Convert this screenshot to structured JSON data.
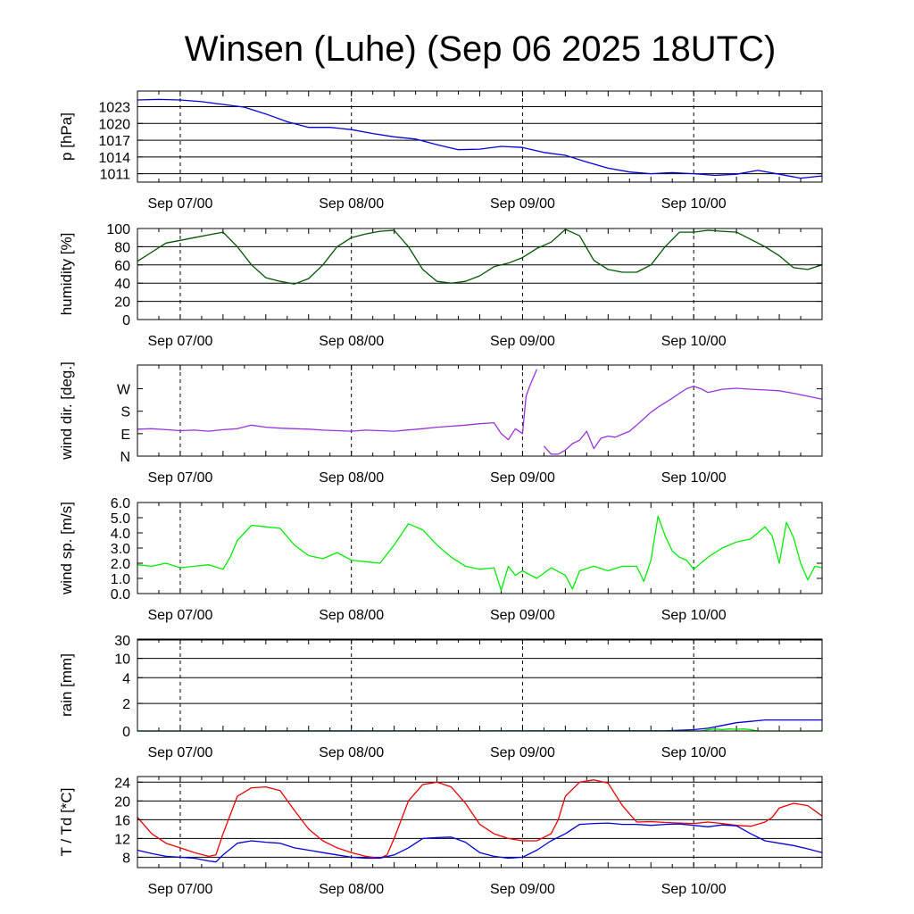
{
  "title": "Winsen (Luhe) (Sep 06 2025 18UTC)",
  "chart_data": [
    {
      "type": "line",
      "ylabel": "p [hPa]",
      "yticks": [
        "1011",
        "1014",
        "1017",
        "1020",
        "1023"
      ],
      "ylim": [
        1009.5,
        1025.8
      ],
      "xlim": [
        0,
        96
      ],
      "xticks": [
        {
          "label": "Sep 07/00",
          "x": 6
        },
        {
          "label": "Sep 08/00",
          "x": 30
        },
        {
          "label": "Sep 09/00",
          "x": 54
        },
        {
          "label": "Sep 10/00",
          "x": 78
        }
      ],
      "grid": true,
      "series": [
        {
          "color": "#0000dd",
          "x": [
            0,
            3,
            6,
            9,
            12,
            15,
            18,
            21,
            24,
            27,
            30,
            33,
            36,
            39,
            42,
            45,
            48,
            51,
            54,
            57,
            60,
            63,
            66,
            69,
            72,
            75,
            78,
            81,
            84,
            87,
            90,
            93,
            96
          ],
          "values": [
            1024.2,
            1024.3,
            1024.2,
            1023.9,
            1023.4,
            1022.9,
            1021.7,
            1020.3,
            1019.3,
            1019.3,
            1018.9,
            1018.2,
            1017.6,
            1017.2,
            1016.2,
            1015.3,
            1015.4,
            1015.9,
            1015.7,
            1014.8,
            1014.3,
            1013.1,
            1012.0,
            1011.3,
            1011.0,
            1011.2,
            1011.0,
            1010.7,
            1010.9,
            1011.6,
            1010.9,
            1010.2,
            1010.6
          ]
        }
      ]
    },
    {
      "type": "line",
      "ylabel": "humidity [%]",
      "yticks": [
        "0",
        "20",
        "40",
        "60",
        "80",
        "100"
      ],
      "ylim": [
        0,
        100
      ],
      "xlim": [
        0,
        96
      ],
      "xticks": [
        {
          "label": "Sep 07/00",
          "x": 6
        },
        {
          "label": "Sep 08/00",
          "x": 30
        },
        {
          "label": "Sep 09/00",
          "x": 54
        },
        {
          "label": "Sep 10/00",
          "x": 78
        }
      ],
      "grid": true,
      "series": [
        {
          "color": "#005500",
          "x": [
            0,
            2,
            4,
            6,
            8,
            10,
            12,
            14,
            16,
            18,
            20,
            22,
            24,
            26,
            28,
            30,
            32,
            34,
            36,
            38,
            40,
            42,
            44,
            46,
            48,
            50,
            52,
            54,
            56,
            58,
            60,
            62,
            64,
            66,
            68,
            70,
            72,
            74,
            76,
            78,
            80,
            82,
            84,
            86,
            88,
            90,
            92,
            94,
            96
          ],
          "values": [
            64,
            74,
            84,
            87,
            90,
            93,
            96,
            80,
            60,
            46,
            42,
            39,
            45,
            60,
            80,
            90,
            94,
            97,
            98,
            80,
            55,
            42,
            40,
            42,
            48,
            58,
            62,
            68,
            78,
            85,
            99,
            92,
            65,
            55,
            52,
            52,
            60,
            80,
            96,
            96,
            98,
            97,
            96,
            88,
            80,
            70,
            57,
            55,
            60
          ]
        }
      ]
    },
    {
      "type": "line",
      "ylabel": "wind dir. [deg.]",
      "yticks": [
        "N",
        "E",
        "S",
        "W"
      ],
      "ytick_values": [
        0,
        90,
        180,
        270
      ],
      "ylim": [
        0,
        365
      ],
      "xlim": [
        0,
        96
      ],
      "xticks": [
        {
          "label": "Sep 07/00",
          "x": 6
        },
        {
          "label": "Sep 08/00",
          "x": 30
        },
        {
          "label": "Sep 09/00",
          "x": 54
        },
        {
          "label": "Sep 10/00",
          "x": 78
        }
      ],
      "grid": false,
      "series": [
        {
          "color": "#9933dd",
          "segments": [
            {
              "x": [
                0,
                2,
                4,
                6,
                8,
                10,
                12,
                14,
                16,
                18,
                20,
                22,
                24,
                26,
                28,
                30,
                32,
                34,
                36,
                38,
                40,
                42,
                44,
                46,
                48,
                50,
                51,
                52,
                53,
                54,
                54.5,
                55,
                56
              ],
              "values": [
                108,
                110,
                106,
                102,
                104,
                100,
                106,
                110,
                124,
                116,
                112,
                110,
                108,
                104,
                102,
                100,
                104,
                102,
                100,
                105,
                110,
                116,
                120,
                124,
                130,
                134,
                90,
                66,
                110,
                90,
                240,
                280,
                348
              ]
            },
            {
              "x": [
                57,
                58,
                59,
                60,
                61,
                62,
                63,
                64,
                65,
                66,
                67,
                68,
                69,
                70,
                71,
                72,
                73,
                74,
                75,
                76,
                77,
                78,
                79,
                80,
                82,
                84,
                86,
                88,
                90,
                92,
                94,
                96
              ],
              "values": [
                40,
                8,
                8,
                24,
                50,
                64,
                100,
                30,
                72,
                80,
                76,
                88,
                100,
                124,
                150,
                176,
                196,
                214,
                232,
                252,
                270,
                280,
                270,
                255,
                268,
                272,
                268,
                265,
                262,
                252,
                240,
                228
              ]
            }
          ]
        }
      ]
    },
    {
      "type": "line",
      "ylabel": "wind sp. [m/s]",
      "yticks": [
        "0.0",
        "1.0",
        "2.0",
        "3.0",
        "4.0",
        "5.0",
        "6.0"
      ],
      "ylim": [
        0,
        6
      ],
      "xlim": [
        0,
        96
      ],
      "xticks": [
        {
          "label": "Sep 07/00",
          "x": 6
        },
        {
          "label": "Sep 08/00",
          "x": 30
        },
        {
          "label": "Sep 09/00",
          "x": 54
        },
        {
          "label": "Sep 10/00",
          "x": 78
        }
      ],
      "grid": false,
      "series": [
        {
          "color": "#00ee00",
          "x": [
            0,
            2,
            4,
            6,
            8,
            10,
            12,
            13,
            14,
            16,
            18,
            20,
            22,
            24,
            26,
            28,
            30,
            32,
            34,
            36,
            38,
            40,
            42,
            44,
            46,
            48,
            50,
            51,
            52,
            53,
            54,
            56,
            58,
            60,
            61,
            62,
            64,
            66,
            68,
            70,
            71,
            72,
            73,
            74,
            75,
            76,
            77,
            78,
            79,
            80,
            82,
            84,
            86,
            88,
            89,
            90,
            91,
            92,
            93,
            94,
            95,
            96
          ],
          "values": [
            1.9,
            1.8,
            2.0,
            1.7,
            1.8,
            1.9,
            1.6,
            2.4,
            3.5,
            4.5,
            4.4,
            4.3,
            3.2,
            2.5,
            2.3,
            2.7,
            2.2,
            2.1,
            2.0,
            3.2,
            4.6,
            4.2,
            3.2,
            2.4,
            1.8,
            1.6,
            1.7,
            0.2,
            1.8,
            1.2,
            1.5,
            1.0,
            1.7,
            1.2,
            0.3,
            1.5,
            1.8,
            1.5,
            1.8,
            1.8,
            0.8,
            2.2,
            5.1,
            3.8,
            2.8,
            2.4,
            2.2,
            1.6,
            2.0,
            2.4,
            3.0,
            3.4,
            3.6,
            4.4,
            3.8,
            2.0,
            4.7,
            3.7,
            2.0,
            0.9,
            1.8,
            1.7
          ]
        }
      ]
    },
    {
      "type": "line",
      "ylabel": "rain [mm]",
      "yticks": [
        "0",
        "2",
        "4",
        "10",
        "30"
      ],
      "ytick_values": [
        0,
        2,
        4,
        10,
        30
      ],
      "ytick_positions": [
        0,
        0.3,
        0.58,
        0.79,
        0.99
      ],
      "xlim": [
        0,
        96
      ],
      "xticks": [
        {
          "label": "Sep 07/00",
          "x": 6
        },
        {
          "label": "Sep 08/00",
          "x": 30
        },
        {
          "label": "Sep 09/00",
          "x": 54
        },
        {
          "label": "Sep 10/00",
          "x": 78
        }
      ],
      "grid": true,
      "series": [
        {
          "color": "#0000dd",
          "x": [
            0,
            74,
            76,
            78,
            80,
            82,
            84,
            86,
            88,
            92,
            96
          ],
          "values": [
            0,
            0.01,
            0.05,
            0.1,
            0.2,
            0.4,
            0.6,
            0.7,
            0.8,
            0.8,
            0.8
          ]
        },
        {
          "color": "#00dd00",
          "x": [
            0,
            79,
            80,
            81,
            82,
            83,
            84,
            85,
            86,
            87,
            96
          ],
          "values": [
            0,
            0,
            0.1,
            0.15,
            0.1,
            0.15,
            0.12,
            0.15,
            0.1,
            0,
            0
          ]
        }
      ]
    },
    {
      "type": "line",
      "ylabel": "T / Td [*C]",
      "yticks": [
        "8",
        "12",
        "16",
        "20",
        "24"
      ],
      "ylim": [
        5.8,
        25.2
      ],
      "xlim": [
        0,
        96
      ],
      "xticks": [
        {
          "label": "Sep 07/00",
          "x": 6
        },
        {
          "label": "Sep 08/00",
          "x": 30
        },
        {
          "label": "Sep 09/00",
          "x": 54
        },
        {
          "label": "Sep 10/00",
          "x": 78
        }
      ],
      "grid": true,
      "series": [
        {
          "color": "#ee0000",
          "x": [
            0,
            2,
            4,
            6,
            8,
            10,
            11,
            12,
            14,
            16,
            18,
            20,
            22,
            24,
            26,
            28,
            30,
            32,
            34,
            35,
            36,
            38,
            40,
            42,
            44,
            46,
            48,
            50,
            52,
            54,
            56,
            58,
            59,
            60,
            62,
            64,
            66,
            68,
            70,
            72,
            74,
            76,
            78,
            80,
            82,
            84,
            86,
            88,
            89,
            90,
            92,
            94,
            96
          ],
          "values": [
            16.5,
            13,
            11,
            10,
            9,
            8.2,
            8.5,
            13,
            21,
            22.8,
            23,
            22.2,
            18,
            14,
            11.5,
            10,
            9,
            8.2,
            7.8,
            8.5,
            12,
            20,
            23.5,
            24,
            23,
            19.5,
            15,
            13,
            12,
            11.5,
            11.5,
            13,
            16,
            21,
            24,
            24.5,
            23.8,
            19,
            15.5,
            15.6,
            15.4,
            15.3,
            15.2,
            15.5,
            15.2,
            14.8,
            14.6,
            15.5,
            16.5,
            18.5,
            19.5,
            19,
            16.8
          ]
        },
        {
          "color": "#0000dd",
          "x": [
            0,
            2,
            4,
            6,
            8,
            10,
            11,
            12,
            14,
            16,
            18,
            20,
            22,
            24,
            26,
            28,
            30,
            32,
            34,
            36,
            38,
            40,
            42,
            44,
            46,
            48,
            50,
            52,
            54,
            56,
            58,
            60,
            62,
            64,
            66,
            68,
            70,
            72,
            74,
            76,
            78,
            80,
            82,
            84,
            86,
            88,
            90,
            92,
            94,
            96
          ],
          "values": [
            9.5,
            8.8,
            8.2,
            8,
            7.8,
            7.2,
            7.0,
            8.5,
            11,
            11.5,
            11.2,
            11,
            10,
            9.5,
            9,
            8.5,
            8,
            7.8,
            7.8,
            8.5,
            10,
            12,
            12.2,
            12.3,
            11.2,
            9,
            8.2,
            7.8,
            8,
            9.5,
            11.5,
            13,
            15,
            15.2,
            15.3,
            15,
            15,
            14.8,
            15,
            15.1,
            14.8,
            14.5,
            14.9,
            14.7,
            13,
            11.5,
            11,
            10.5,
            9.8,
            9
          ]
        }
      ]
    }
  ]
}
